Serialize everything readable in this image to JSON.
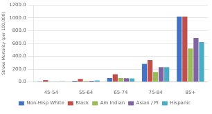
{
  "chart_data": {
    "type": "bar",
    "categories": [
      "45-54",
      "55-64",
      "65-74",
      "75-84",
      "85+"
    ],
    "series": [
      {
        "name": "Non-Hisp White",
        "color": "#4472C4",
        "values": [
          10,
          18,
          60,
          280,
          1020
        ]
      },
      {
        "name": "Black",
        "color": "#C0504D",
        "values": [
          28,
          48,
          120,
          340,
          1020
        ]
      },
      {
        "name": "Am Indian",
        "color": "#9BBB59",
        "values": [
          5,
          15,
          60,
          155,
          520
        ]
      },
      {
        "name": "Asian / PI",
        "color": "#8064A2",
        "values": [
          5,
          18,
          58,
          230,
          685
        ]
      },
      {
        "name": "Hispanic",
        "color": "#4BACC6",
        "values": [
          8,
          22,
          55,
          230,
          620
        ]
      }
    ],
    "ylabel": "Stroke Mortality (per 100,000)",
    "ylim": [
      0,
      1200
    ],
    "yticks": [
      {
        "value": 0,
        "label": "0.0"
      },
      {
        "value": 200,
        "label": "200.0"
      },
      {
        "value": 400,
        "label": "400.0"
      },
      {
        "value": 600,
        "label": "600.0"
      },
      {
        "value": 800,
        "label": "800.0"
      },
      {
        "value": 1000,
        "label": "1000.0"
      },
      {
        "value": 1200,
        "label": "1200.0"
      }
    ],
    "grid": true,
    "legend": "bottom"
  }
}
